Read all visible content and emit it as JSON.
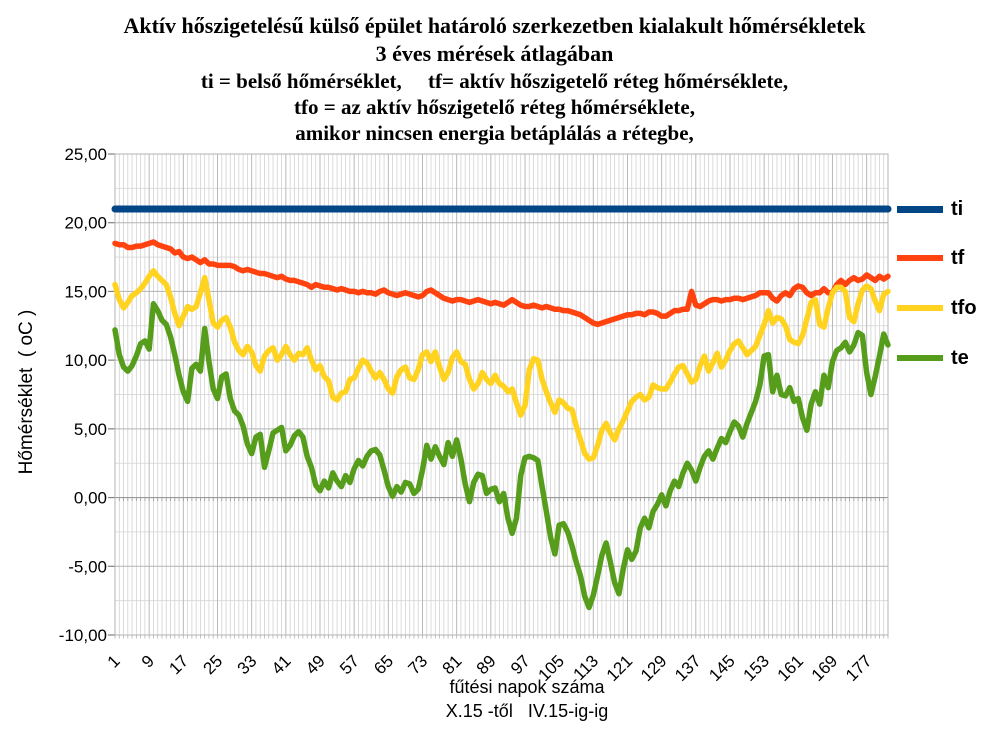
{
  "chart_data": {
    "type": "line",
    "title_lines": [
      "Aktív hőszigetelésű külső épület határoló szerkezetben kialakult hőmérsékletek",
      "3 éves mérések átlagában",
      "ti = belső hőmérséklet,     tf= aktív hőszigetelő réteg hőmérséklete,",
      "tfo = az aktív hőszigetelő réteg hőmérséklete,",
      "amikor nincsen energia betáplálás a rétegbe,"
    ],
    "ylabel": "Hőmérséklet  ( oC )",
    "xlabel_lines": [
      "fűtési napok száma",
      "X.15 -től   IV.15-ig-ig"
    ],
    "ylim": [
      -10,
      25
    ],
    "y_ticks": [
      {
        "v": 25,
        "label": "25,00"
      },
      {
        "v": 20,
        "label": "20,00"
      },
      {
        "v": 15,
        "label": "15,00"
      },
      {
        "v": 10,
        "label": "10,00"
      },
      {
        "v": 5,
        "label": "5,00"
      },
      {
        "v": 0,
        "label": "0,00"
      },
      {
        "v": -5,
        "label": "-5,00"
      },
      {
        "v": -10,
        "label": "-10,00"
      }
    ],
    "x_ticks": [
      1,
      9,
      17,
      25,
      33,
      41,
      49,
      57,
      65,
      73,
      81,
      89,
      97,
      105,
      113,
      121,
      129,
      137,
      145,
      153,
      161,
      169,
      177
    ],
    "n_days": 182,
    "grid": {
      "minor_step": 2.5,
      "major_step": 5,
      "vertical_every_day": true
    },
    "legend_position": "right",
    "series": [
      {
        "name": "ti",
        "color": "#004586",
        "values": [
          21,
          21,
          21,
          21,
          21,
          21,
          21,
          21,
          21,
          21,
          21,
          21,
          21,
          21,
          21,
          21,
          21,
          21,
          21,
          21,
          21,
          21,
          21,
          21,
          21,
          21,
          21,
          21,
          21,
          21,
          21,
          21,
          21,
          21,
          21,
          21,
          21,
          21,
          21,
          21,
          21,
          21,
          21,
          21,
          21,
          21,
          21,
          21,
          21,
          21,
          21,
          21,
          21,
          21,
          21,
          21,
          21,
          21,
          21,
          21,
          21,
          21,
          21,
          21,
          21,
          21,
          21,
          21,
          21,
          21,
          21,
          21,
          21,
          21,
          21,
          21,
          21,
          21,
          21,
          21,
          21,
          21,
          21,
          21,
          21,
          21,
          21,
          21,
          21,
          21,
          21,
          21,
          21,
          21,
          21,
          21,
          21,
          21,
          21,
          21,
          21,
          21,
          21,
          21,
          21,
          21,
          21,
          21,
          21,
          21,
          21,
          21,
          21,
          21,
          21,
          21,
          21,
          21,
          21,
          21,
          21,
          21,
          21,
          21,
          21,
          21,
          21,
          21,
          21,
          21,
          21,
          21,
          21,
          21,
          21,
          21,
          21,
          21,
          21,
          21,
          21,
          21,
          21,
          21,
          21,
          21,
          21,
          21,
          21,
          21,
          21,
          21,
          21,
          21,
          21,
          21,
          21,
          21,
          21,
          21,
          21,
          21,
          21,
          21,
          21,
          21,
          21,
          21,
          21,
          21,
          21,
          21,
          21,
          21,
          21,
          21,
          21,
          21,
          21,
          21,
          21,
          21
        ]
      },
      {
        "name": "tf",
        "color": "#FF420E",
        "values": [
          18.5,
          18.4,
          18.4,
          18.2,
          18.2,
          18.3,
          18.3,
          18.4,
          18.5,
          18.6,
          18.4,
          18.3,
          18.2,
          18.1,
          17.8,
          17.9,
          17.5,
          17.4,
          17.5,
          17.3,
          17.1,
          17.3,
          17.0,
          17.0,
          16.9,
          16.9,
          16.9,
          16.9,
          16.8,
          16.6,
          16.5,
          16.6,
          16.5,
          16.4,
          16.3,
          16.3,
          16.2,
          16.1,
          16.0,
          16.1,
          15.9,
          15.8,
          15.8,
          15.7,
          15.6,
          15.5,
          15.3,
          15.5,
          15.4,
          15.3,
          15.3,
          15.2,
          15.1,
          15.2,
          15.1,
          15.0,
          15.0,
          14.9,
          15.0,
          14.9,
          14.9,
          14.8,
          15.0,
          15.1,
          14.9,
          14.8,
          14.7,
          14.8,
          14.9,
          14.8,
          14.7,
          14.6,
          14.7,
          15.0,
          15.1,
          14.9,
          14.7,
          14.5,
          14.4,
          14.3,
          14.4,
          14.4,
          14.3,
          14.2,
          14.3,
          14.4,
          14.3,
          14.2,
          14.1,
          14.2,
          14.1,
          14.0,
          14.2,
          14.4,
          14.2,
          14.0,
          13.9,
          13.9,
          14.0,
          13.9,
          13.8,
          13.9,
          13.8,
          13.7,
          13.7,
          13.6,
          13.6,
          13.5,
          13.4,
          13.3,
          13.1,
          12.9,
          12.7,
          12.6,
          12.7,
          12.8,
          12.9,
          13.0,
          13.1,
          13.2,
          13.3,
          13.3,
          13.4,
          13.4,
          13.3,
          13.5,
          13.5,
          13.4,
          13.2,
          13.2,
          13.4,
          13.6,
          13.6,
          13.7,
          13.7,
          15.0,
          14.0,
          13.9,
          14.1,
          14.3,
          14.4,
          14.4,
          14.3,
          14.4,
          14.4,
          14.5,
          14.5,
          14.4,
          14.5,
          14.6,
          14.7,
          14.9,
          14.9,
          14.9,
          14.5,
          14.3,
          14.7,
          14.9,
          14.7,
          15.2,
          15.4,
          15.3,
          14.9,
          14.7,
          14.9,
          14.9,
          15.2,
          14.9,
          14.9,
          15.5,
          15.8,
          15.5,
          15.8,
          16.0,
          15.8,
          15.9,
          16.2,
          16.0,
          15.8,
          16.1,
          15.9,
          16.1
        ]
      },
      {
        "name": "tfo",
        "color": "#FFD320",
        "values": [
          15.5,
          14.4,
          13.8,
          14.2,
          14.7,
          14.9,
          15.2,
          15.6,
          16.1,
          16.5,
          16.1,
          15.8,
          15.5,
          14.6,
          13.4,
          12.5,
          13.2,
          13.9,
          13.7,
          13.9,
          14.9,
          16.0,
          14.4,
          12.7,
          12.4,
          12.9,
          13.1,
          12.4,
          11.3,
          10.7,
          10.4,
          11.0,
          10.6,
          9.6,
          9.2,
          10.3,
          10.7,
          10.9,
          10.0,
          10.4,
          11.0,
          10.4,
          10.0,
          10.5,
          10.4,
          10.9,
          10.0,
          9.3,
          9.6,
          8.8,
          8.5,
          7.3,
          7.1,
          7.6,
          7.7,
          8.6,
          8.7,
          9.4,
          10.0,
          9.8,
          9.2,
          8.7,
          9.1,
          8.6,
          7.9,
          7.6,
          8.8,
          9.3,
          9.5,
          8.7,
          8.6,
          9.3,
          10.4,
          10.6,
          9.9,
          10.6,
          9.5,
          8.6,
          9.1,
          10.2,
          10.6,
          9.9,
          9.7,
          8.6,
          7.9,
          8.3,
          9.1,
          8.6,
          8.3,
          8.9,
          8.3,
          8.1,
          7.7,
          7.9,
          6.9,
          6.0,
          6.7,
          9.3,
          10.1,
          10.0,
          8.6,
          7.7,
          6.9,
          6.2,
          7.1,
          6.9,
          6.5,
          6.4,
          5.2,
          4.2,
          3.2,
          2.8,
          2.9,
          3.8,
          4.9,
          5.4,
          4.7,
          4.2,
          5.0,
          5.6,
          6.3,
          7.0,
          7.3,
          7.5,
          7.1,
          7.3,
          8.2,
          8.0,
          7.9,
          7.9,
          8.4,
          9.0,
          9.5,
          9.6,
          9.0,
          8.4,
          8.6,
          9.6,
          10.3,
          9.2,
          9.8,
          10.5,
          9.5,
          10.0,
          10.7,
          11.2,
          11.4,
          10.9,
          10.4,
          10.7,
          11.0,
          11.8,
          12.6,
          13.6,
          12.7,
          13.1,
          13.0,
          12.5,
          11.5,
          11.3,
          11.2,
          11.8,
          13.0,
          14.2,
          14.4,
          12.6,
          12.4,
          13.8,
          14.9,
          15.3,
          15.3,
          15.0,
          13.1,
          12.8,
          14.1,
          15.1,
          15.4,
          15.2,
          14.3,
          13.6,
          14.8,
          15.0
        ]
      },
      {
        "name": "te",
        "color": "#579D1C",
        "values": [
          12.2,
          10.4,
          9.5,
          9.2,
          9.6,
          10.3,
          11.2,
          11.4,
          10.8,
          14.1,
          13.6,
          12.9,
          12.6,
          11.7,
          10.4,
          8.9,
          7.7,
          7.0,
          9.4,
          9.7,
          9.2,
          12.3,
          9.9,
          7.9,
          7.2,
          8.8,
          9.0,
          7.2,
          6.3,
          6.0,
          5.2,
          3.9,
          3.2,
          4.4,
          4.6,
          2.2,
          3.4,
          4.7,
          4.9,
          5.1,
          3.4,
          3.8,
          4.5,
          4.8,
          4.4,
          3.0,
          2.2,
          0.9,
          0.5,
          1.2,
          0.7,
          1.8,
          1.2,
          0.8,
          1.6,
          1.1,
          2.1,
          2.7,
          2.3,
          3.0,
          3.4,
          3.5,
          3.1,
          2.0,
          0.8,
          0.1,
          0.8,
          0.4,
          1.1,
          1.0,
          0.3,
          0.6,
          2.0,
          3.8,
          2.8,
          3.7,
          3.0,
          2.4,
          4.0,
          3.0,
          4.2,
          2.8,
          1.0,
          -0.3,
          1.1,
          1.7,
          1.6,
          0.3,
          0.6,
          0.7,
          -0.3,
          0.3,
          -1.5,
          -2.6,
          -1.5,
          1.6,
          2.9,
          3.0,
          2.9,
          2.7,
          0.8,
          -1.0,
          -2.9,
          -4.1,
          -2.0,
          -1.9,
          -2.5,
          -3.5,
          -4.7,
          -5.7,
          -7.2,
          -8.0,
          -7.1,
          -5.7,
          -4.2,
          -3.3,
          -4.7,
          -6.2,
          -7.0,
          -5.2,
          -3.8,
          -4.5,
          -3.9,
          -2.2,
          -1.5,
          -2.2,
          -1.0,
          -0.5,
          0.2,
          -0.6,
          0.5,
          1.2,
          0.8,
          1.8,
          2.5,
          2.0,
          1.2,
          2.2,
          3.0,
          3.4,
          2.8,
          3.6,
          4.3,
          4.0,
          4.8,
          5.5,
          5.2,
          4.4,
          5.4,
          6.2,
          7.0,
          8.2,
          10.3,
          10.4,
          7.7,
          8.9,
          7.5,
          7.4,
          8.0,
          7.0,
          7.2,
          5.8,
          4.9,
          6.8,
          7.7,
          6.8,
          8.9,
          8.0,
          9.9,
          10.7,
          10.9,
          11.3,
          10.6,
          11.1,
          12.0,
          11.8,
          9.1,
          7.5,
          8.8,
          10.3,
          11.9,
          11.1
        ]
      }
    ]
  }
}
